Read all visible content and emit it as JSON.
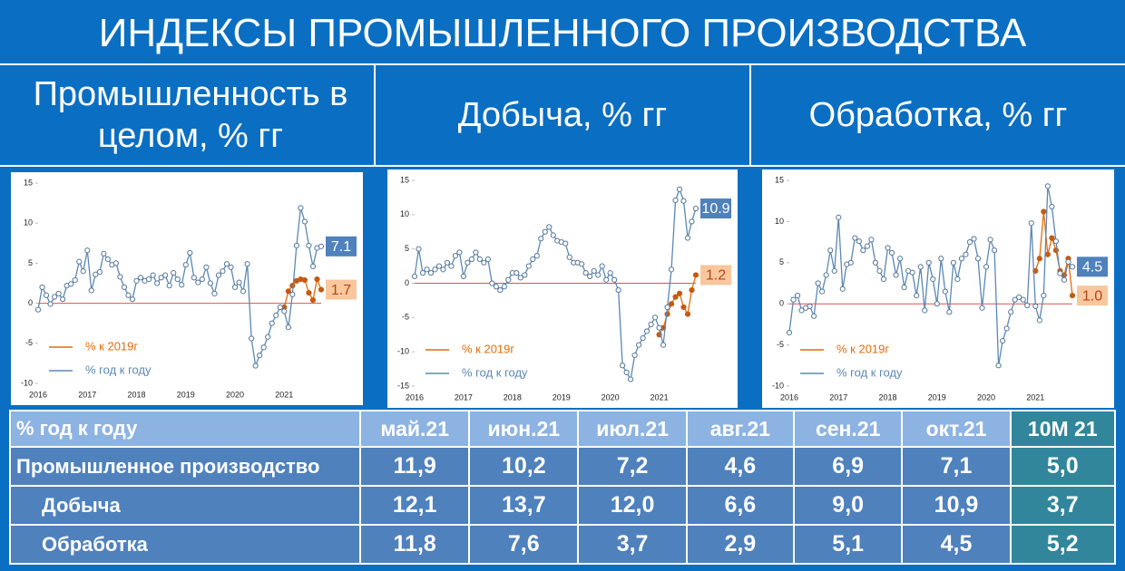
{
  "title": "ИНДЕКСЫ ПРОМЫШЛЕННОГО ПРОИЗВОДСТВА",
  "panels": [
    "Промышленность в целом, % гг",
    "Добыча, % гг",
    "Обработка, % гг"
  ],
  "chart_data": [
    {
      "type": "line",
      "categories": [
        "2016",
        null,
        null,
        null,
        null,
        null,
        null,
        null,
        null,
        null,
        null,
        null,
        "2017",
        null,
        null,
        null,
        null,
        null,
        null,
        null,
        null,
        null,
        null,
        null,
        "2018",
        null,
        null,
        null,
        null,
        null,
        null,
        null,
        null,
        null,
        null,
        null,
        "2019",
        null,
        null,
        null,
        null,
        null,
        null,
        null,
        null,
        null,
        null,
        null,
        "2020",
        null,
        null,
        null,
        null,
        null,
        null,
        null,
        null,
        null,
        null,
        null,
        "2021",
        null,
        null,
        null,
        null,
        null,
        null,
        null,
        null,
        null
      ],
      "series": [
        {
          "name": "% к 2019г",
          "color": "#e46c0a",
          "marker_color": "#c55a11",
          "end_label": true,
          "values": [
            null,
            null,
            null,
            null,
            null,
            null,
            null,
            null,
            null,
            null,
            null,
            null,
            null,
            null,
            null,
            null,
            null,
            null,
            null,
            null,
            null,
            null,
            null,
            null,
            null,
            null,
            null,
            null,
            null,
            null,
            null,
            null,
            null,
            null,
            null,
            null,
            null,
            null,
            null,
            null,
            null,
            null,
            null,
            null,
            null,
            null,
            null,
            null,
            null,
            null,
            null,
            null,
            null,
            null,
            null,
            null,
            null,
            null,
            null,
            null,
            -0.5,
            1.5,
            2.2,
            2.8,
            3.0,
            2.9,
            1.3,
            0.4,
            3.0,
            1.7
          ]
        },
        {
          "name": "% год к году",
          "color": "#5b88b5",
          "marker_color": "#ffffff",
          "end_label": true,
          "values": [
            -0.8,
            2.0,
            1.0,
            -0.1,
            0.8,
            1.2,
            0.5,
            2.2,
            2.4,
            2.9,
            5.2,
            4.0,
            6.6,
            1.6,
            3.6,
            3.9,
            6.2,
            5.5,
            4.8,
            5.0,
            3.3,
            2.0,
            1.0,
            0.5,
            2.8,
            3.2,
            2.8,
            3.0,
            3.5,
            2.5,
            3.2,
            3.5,
            2.2,
            3.8,
            3.0,
            2.3,
            4.8,
            6.3,
            3.2,
            2.6,
            3.0,
            4.5,
            2.5,
            1.2,
            3.5,
            4.0,
            4.9,
            4.5,
            2.0,
            2.6,
            1.5,
            4.9,
            -4.4,
            -7.8,
            -6.5,
            -5.5,
            -4.2,
            -2.5,
            -1.5,
            -0.5,
            -1.0,
            -3.0,
            1.1,
            7.2,
            11.9,
            10.2,
            7.2,
            4.6,
            6.9,
            7.1
          ]
        }
      ],
      "ylim": [
        -10,
        15
      ],
      "yticks": [
        -10,
        -5,
        0,
        5,
        10,
        15
      ],
      "legend": "lower left"
    },
    {
      "type": "line",
      "categories": [
        "2016",
        null,
        null,
        null,
        null,
        null,
        null,
        null,
        null,
        null,
        null,
        null,
        "2017",
        null,
        null,
        null,
        null,
        null,
        null,
        null,
        null,
        null,
        null,
        null,
        "2018",
        null,
        null,
        null,
        null,
        null,
        null,
        null,
        null,
        null,
        null,
        null,
        "2019",
        null,
        null,
        null,
        null,
        null,
        null,
        null,
        null,
        null,
        null,
        null,
        "2020",
        null,
        null,
        null,
        null,
        null,
        null,
        null,
        null,
        null,
        null,
        null,
        "2021",
        null,
        null,
        null,
        null,
        null,
        null,
        null,
        null,
        null
      ],
      "series": [
        {
          "name": "% к 2019г",
          "color": "#e46c0a",
          "marker_color": "#c55a11",
          "end_label": true,
          "values": [
            null,
            null,
            null,
            null,
            null,
            null,
            null,
            null,
            null,
            null,
            null,
            null,
            null,
            null,
            null,
            null,
            null,
            null,
            null,
            null,
            null,
            null,
            null,
            null,
            null,
            null,
            null,
            null,
            null,
            null,
            null,
            null,
            null,
            null,
            null,
            null,
            null,
            null,
            null,
            null,
            null,
            null,
            null,
            null,
            null,
            null,
            null,
            null,
            null,
            null,
            null,
            null,
            null,
            null,
            null,
            null,
            null,
            null,
            null,
            null,
            -7.5,
            -6.5,
            -4.5,
            -3.0,
            -2.0,
            -1.5,
            -3.5,
            -4.5,
            -1.0,
            1.2
          ]
        },
        {
          "name": "% год к году",
          "color": "#5b88b5",
          "marker_color": "#ffffff",
          "end_label": true,
          "values": [
            1.0,
            5.0,
            1.5,
            2.0,
            1.5,
            2.0,
            2.5,
            2.0,
            3.0,
            2.5,
            4.0,
            4.5,
            1.0,
            3.0,
            3.5,
            4.5,
            3.5,
            3.0,
            3.5,
            0.0,
            -0.5,
            -1.0,
            -0.5,
            0.5,
            1.5,
            1.5,
            0.8,
            1.2,
            2.5,
            3.5,
            4.0,
            6.5,
            7.5,
            8.2,
            7.0,
            6.2,
            6.0,
            5.8,
            3.8,
            3.0,
            3.0,
            2.8,
            1.5,
            1.0,
            1.8,
            1.2,
            2.5,
            0.5,
            1.5,
            0.5,
            -1.0,
            -12.0,
            -13.0,
            -14.0,
            -10.5,
            -9.0,
            -8.0,
            -7.0,
            -6.0,
            -5.0,
            -6.5,
            -9.0,
            -3.5,
            2.0,
            12.1,
            13.7,
            12.0,
            6.6,
            9.0,
            10.9
          ]
        }
      ],
      "ylim": [
        -15,
        15
      ],
      "yticks": [
        -15,
        -10,
        -5,
        0,
        5,
        10,
        15
      ],
      "legend": "lower left"
    },
    {
      "type": "line",
      "categories": [
        "2016",
        null,
        null,
        null,
        null,
        null,
        null,
        null,
        null,
        null,
        null,
        null,
        "2017",
        null,
        null,
        null,
        null,
        null,
        null,
        null,
        null,
        null,
        null,
        null,
        "2018",
        null,
        null,
        null,
        null,
        null,
        null,
        null,
        null,
        null,
        null,
        null,
        "2019",
        null,
        null,
        null,
        null,
        null,
        null,
        null,
        null,
        null,
        null,
        null,
        "2020",
        null,
        null,
        null,
        null,
        null,
        null,
        null,
        null,
        null,
        null,
        null,
        "2021",
        null,
        null,
        null,
        null,
        null,
        null,
        null,
        null,
        null
      ],
      "series": [
        {
          "name": "% к 2019г",
          "color": "#e46c0a",
          "marker_color": "#c55a11",
          "end_label": true,
          "values": [
            null,
            null,
            null,
            null,
            null,
            null,
            null,
            null,
            null,
            null,
            null,
            null,
            null,
            null,
            null,
            null,
            null,
            null,
            null,
            null,
            null,
            null,
            null,
            null,
            null,
            null,
            null,
            null,
            null,
            null,
            null,
            null,
            null,
            null,
            null,
            null,
            null,
            null,
            null,
            null,
            null,
            null,
            null,
            null,
            null,
            null,
            null,
            null,
            null,
            null,
            null,
            null,
            null,
            null,
            null,
            null,
            null,
            null,
            null,
            null,
            4.0,
            5.5,
            11.2,
            6.0,
            8.0,
            6.5,
            4.0,
            3.5,
            5.5,
            1.0
          ],
          "value_labels": [
            null,
            null,
            null,
            null,
            null,
            null,
            null,
            null,
            null,
            null,
            null,
            null,
            null,
            null,
            null,
            null,
            null,
            null,
            null,
            null,
            null,
            null,
            null,
            null,
            null,
            null,
            null,
            null,
            null,
            null,
            null,
            null,
            null,
            null,
            null,
            null,
            null,
            null,
            null,
            null,
            null,
            null,
            null,
            null,
            null,
            null,
            null,
            null,
            null,
            null,
            null,
            null,
            null,
            null,
            null,
            null,
            null,
            null,
            null,
            null,
            null,
            null,
            null,
            null,
            null,
            null,
            null,
            null,
            null,
            "1.0"
          ]
        },
        {
          "name": "% год к году",
          "color": "#5b88b5",
          "marker_color": "#ffffff",
          "end_label": true,
          "values": [
            -3.5,
            0.5,
            1.0,
            -0.8,
            -0.5,
            -0.3,
            -1.5,
            2.5,
            1.5,
            3.5,
            6.5,
            4.0,
            10.5,
            1.8,
            4.8,
            5.0,
            8.0,
            7.6,
            6.5,
            7.0,
            7.8,
            5.0,
            4.0,
            3.0,
            6.8,
            6.2,
            3.5,
            5.5,
            2.0,
            4.0,
            3.8,
            1.0,
            4.5,
            -0.8,
            5.0,
            3.0,
            0.0,
            5.5,
            1.5,
            -1.0,
            5.0,
            3.0,
            5.5,
            6.0,
            7.5,
            7.9,
            5.5,
            -0.5,
            4.5,
            7.8,
            6.5,
            -7.5,
            -4.5,
            -3.0,
            -1.0,
            0.5,
            0.8,
            0.5,
            -0.2,
            9.8,
            -0.3,
            -2.0,
            1.0,
            14.3,
            11.8,
            7.6,
            3.7,
            2.9,
            5.1,
            4.5
          ]
        }
      ],
      "ylim": [
        -10,
        15
      ],
      "yticks": [
        -10,
        -5,
        0,
        5,
        10,
        15
      ],
      "legend": "lower left"
    }
  ],
  "table": {
    "header": [
      "% год к году",
      "май.21",
      "июн.21",
      "июл.21",
      "авг.21",
      "сен.21",
      "окт.21",
      "10М 21"
    ],
    "rows": [
      [
        "Промышленное производство",
        "11,9",
        "10,2",
        "7,2",
        "4,6",
        "6,9",
        "7,1",
        "5,0"
      ],
      [
        "Добыча",
        "12,1",
        "13,7",
        "12,0",
        "6,6",
        "9,0",
        "10,9",
        "3,7"
      ],
      [
        "Обработка",
        "11,8",
        "7,6",
        "3,7",
        "2,9",
        "5,1",
        "4,5",
        "5,2"
      ]
    ]
  }
}
